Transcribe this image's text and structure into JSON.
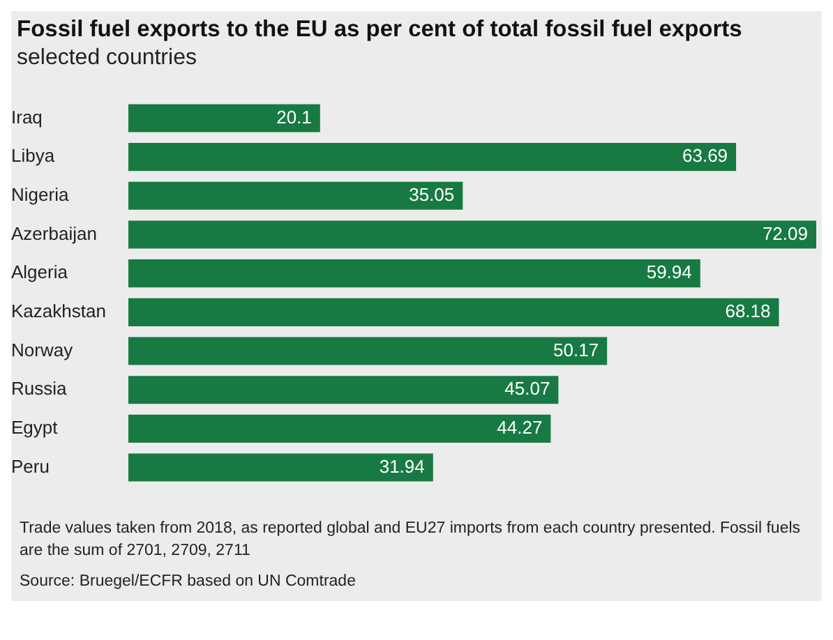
{
  "chart_data": {
    "type": "bar",
    "orientation": "horizontal",
    "title": "Fossil fuel exports to the EU as per cent of total fossil fuel exports",
    "subtitle": "selected countries",
    "categories": [
      "Iraq",
      "Libya",
      "Nigeria",
      "Azerbaijan",
      "Algeria",
      "Kazakhstan",
      "Norway",
      "Russia",
      "Egypt",
      "Peru"
    ],
    "values": [
      20.1,
      63.69,
      35.05,
      72.09,
      59.94,
      68.18,
      50.17,
      45.07,
      44.27,
      31.94
    ],
    "color": "#177a42",
    "data_labels": true,
    "grid": false,
    "legend": false,
    "annotations": [
      "Trade values taken from 2018, as reported global and EU27 imports from each country presented. Fossil fuels are the sum of 2701, 2709, 2711",
      "Source: Bruegel/ECFR based on UN Comtrade"
    ]
  }
}
